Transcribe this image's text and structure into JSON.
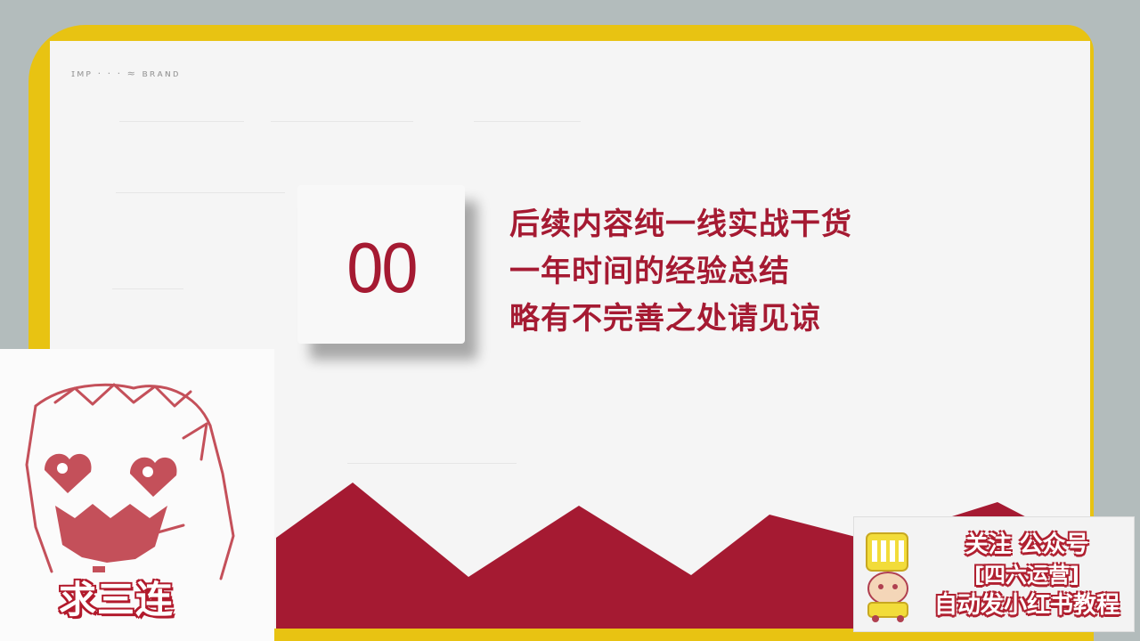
{
  "slide": {
    "header_mark": "ɪᴍᴘ · · ·  ≈ ʙʀᴀɴᴅ",
    "number": "00",
    "tagline_lines": [
      "后续内容纯一线实战干货",
      "一年时间的经验总结",
      "略有不完善之处请见谅"
    ]
  },
  "mascot": {
    "cta": "求三连",
    "icon": "anime-girl-mascot-icon"
  },
  "promo": {
    "lines": [
      "关注 公众号",
      "[四六运营]",
      "自动发小红书教程"
    ],
    "icon": "cartoon-character-icon"
  },
  "colors": {
    "accent": "#a51a32",
    "frame": "#e8c312",
    "background": "#b3bcbc",
    "slide": "#f5f5f5"
  }
}
